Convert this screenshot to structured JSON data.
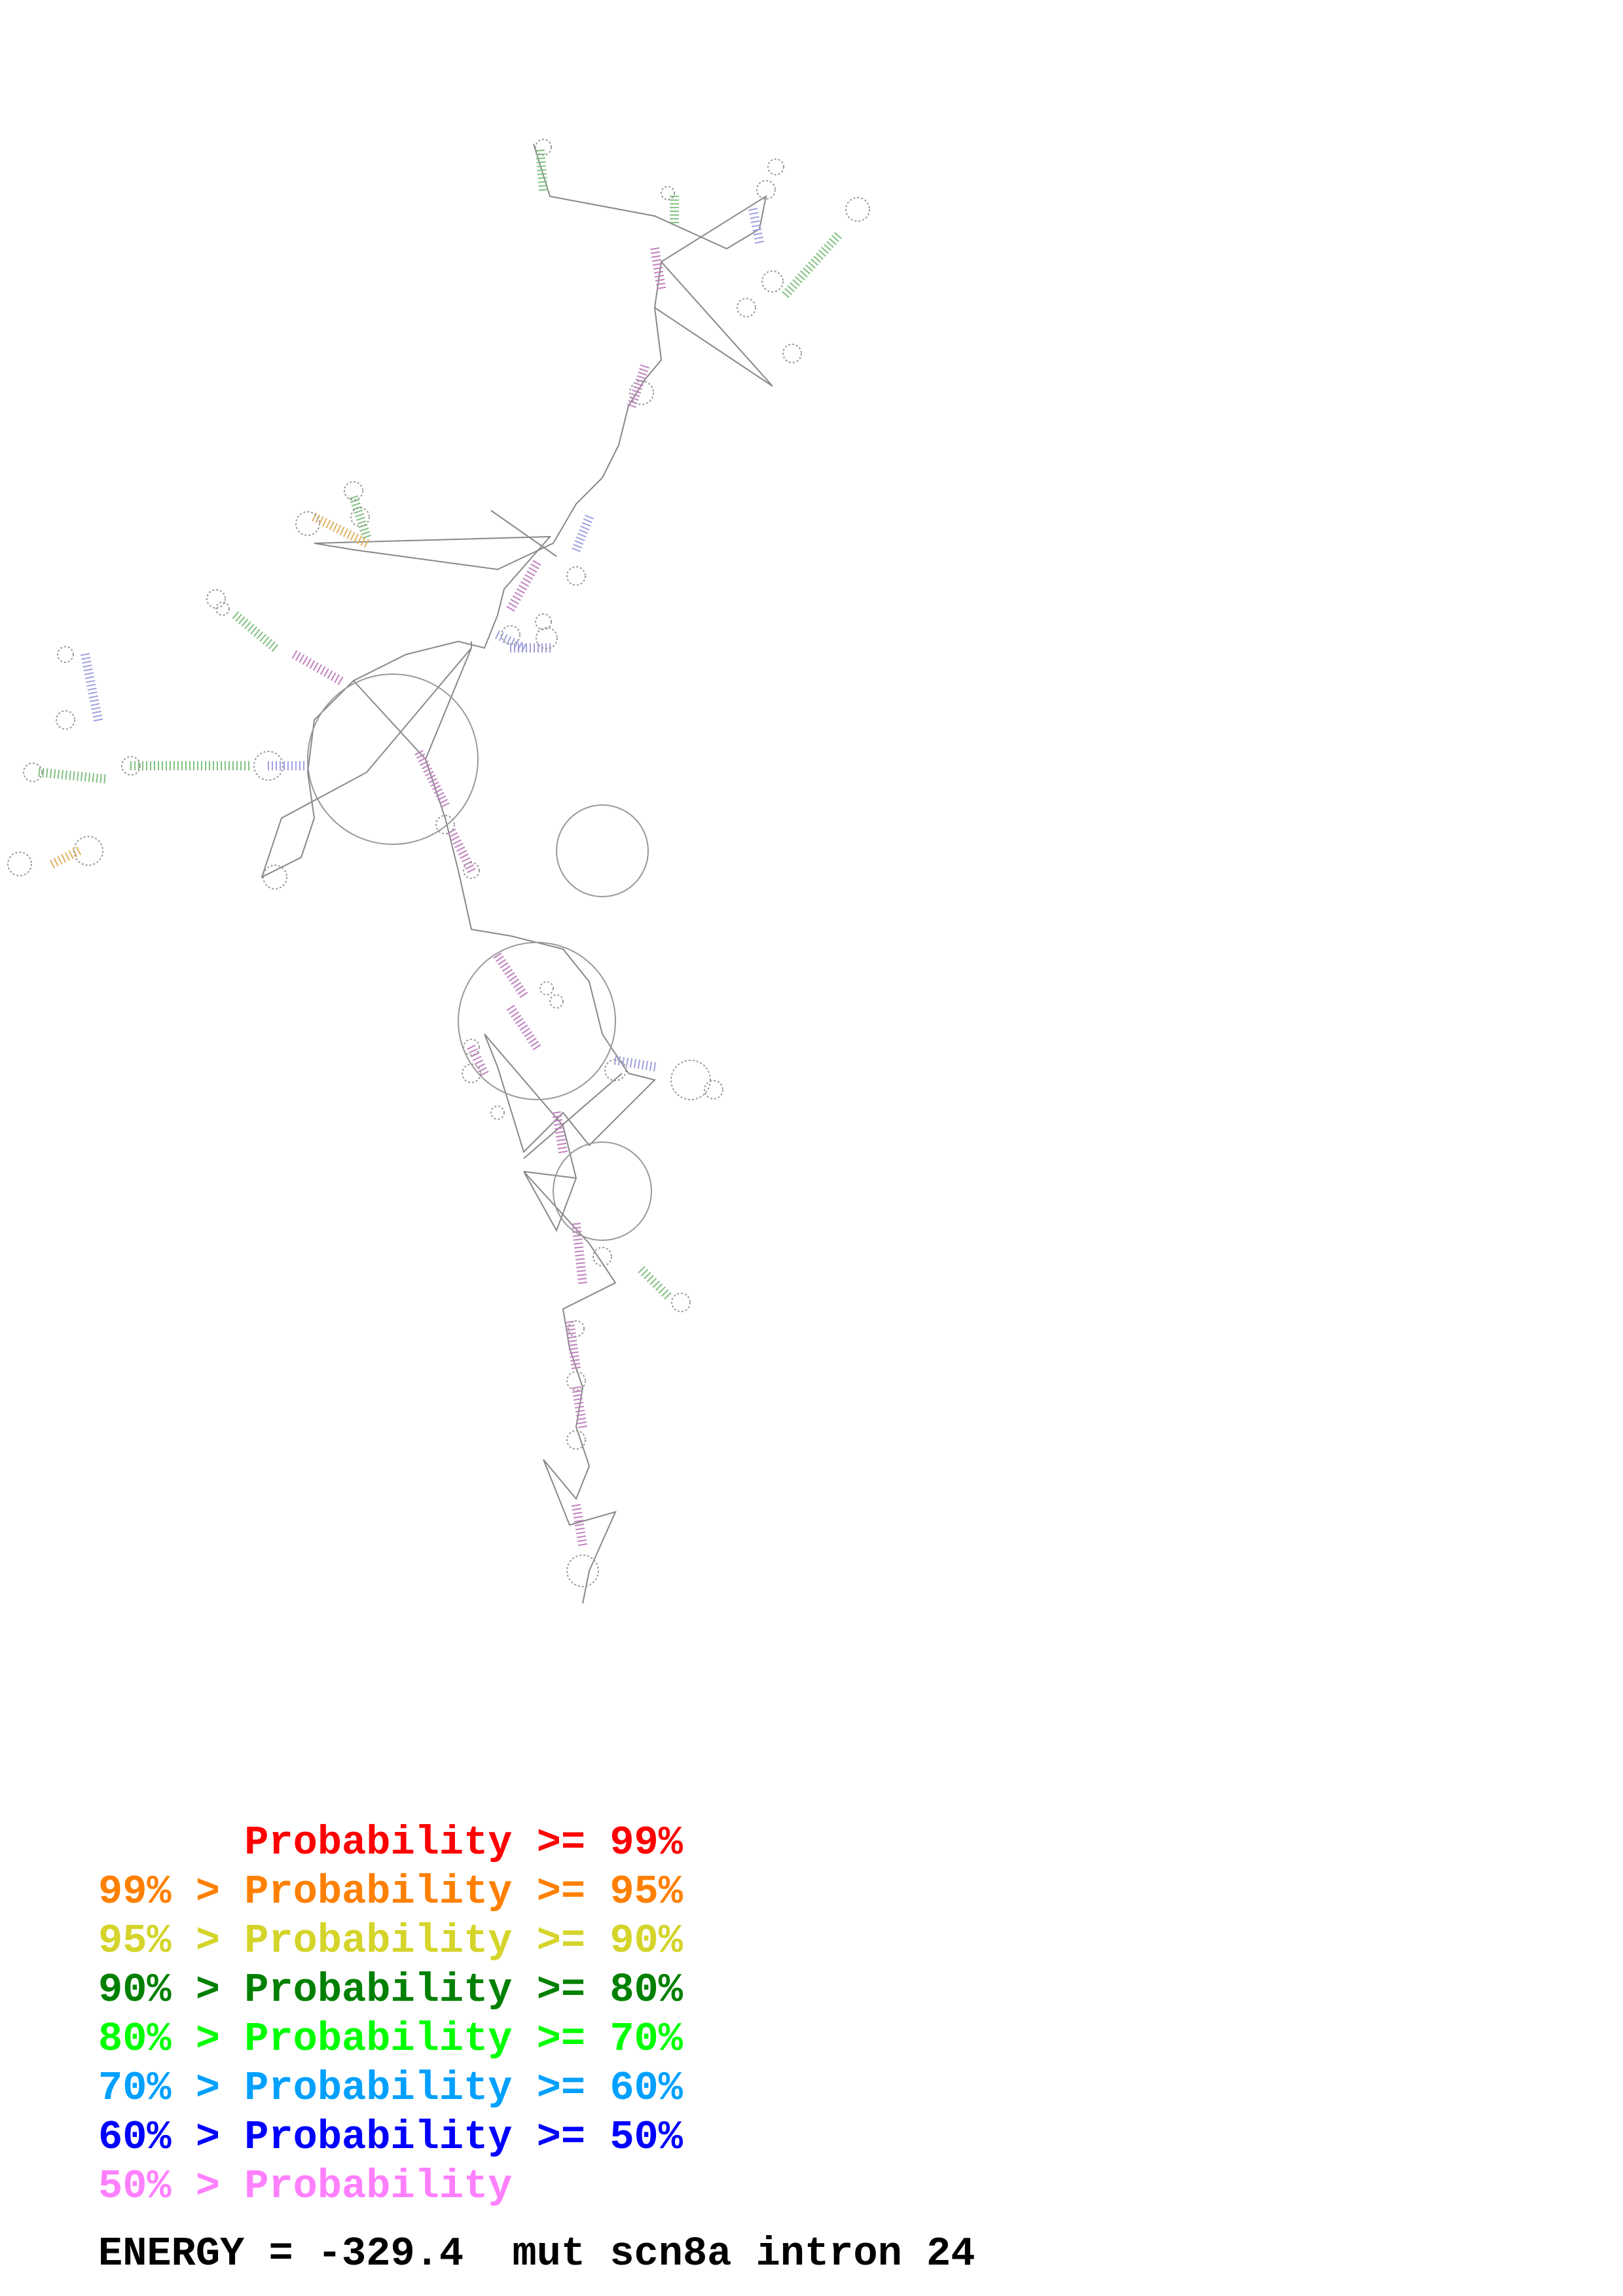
{
  "legend": {
    "rows": [
      {
        "prefix": "       ",
        "label": "Probability",
        "suffix": " >= 99%",
        "color": "#ff0000"
      },
      {
        "prefix": "99% > ",
        "label": "Probability",
        "suffix": " >= 95%",
        "color": "#ff8000"
      },
      {
        "prefix": "95% > ",
        "label": "Probability",
        "suffix": " >= 90%",
        "color": "#d4d42a"
      },
      {
        "prefix": "90% > ",
        "label": "Probability",
        "suffix": " >= 80%",
        "color": "#008000"
      },
      {
        "prefix": "80% > ",
        "label": "Probability",
        "suffix": " >= 70%",
        "color": "#00ff00"
      },
      {
        "prefix": "70% > ",
        "label": "Probability",
        "suffix": " >= 60%",
        "color": "#00a0ff"
      },
      {
        "prefix": "60% > ",
        "label": "Probability",
        "suffix": " >= 50%",
        "color": "#0000ff"
      },
      {
        "prefix": "50% > ",
        "label": "Probability",
        "suffix": "",
        "color": "#ff80ff"
      }
    ]
  },
  "footer": {
    "energy_text": "ENERGY = -329.4  mut scn8a intron 24"
  },
  "structure": {
    "line_color": "#808080",
    "pair_colors": [
      "#c080c0",
      "#808080",
      "#a0a0e0",
      "#80c080",
      "#e0b060",
      "#60a0c0"
    ]
  }
}
